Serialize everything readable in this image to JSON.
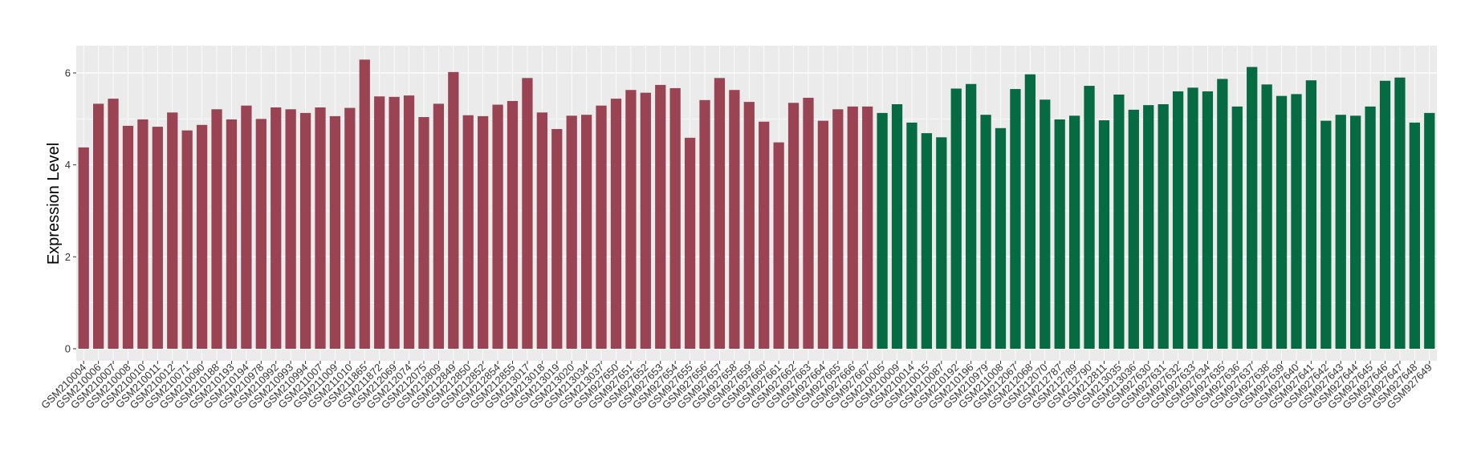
{
  "chart_data": {
    "type": "bar",
    "title": "",
    "xlabel": "",
    "ylabel": "Expression Level",
    "ylim": [
      0,
      6.6
    ],
    "yticks": [
      "0",
      "2",
      "4",
      "6"
    ],
    "grid": true,
    "legend": "none",
    "colors": {
      "group_a": "#9a4453",
      "group_b": "#066a43",
      "panel": "#ebebeb",
      "grid": "#ffffff"
    },
    "categories": [
      "GSM210004",
      "GSM210006",
      "GSM210007",
      "GSM210008",
      "GSM210010",
      "GSM210011",
      "GSM210012",
      "GSM210071",
      "GSM210090",
      "GSM210188",
      "GSM210193",
      "GSM210194",
      "GSM210978",
      "GSM210992",
      "GSM210993",
      "GSM210994",
      "GSM211007",
      "GSM211009",
      "GSM211010",
      "GSM211865",
      "GSM211872",
      "GSM212069",
      "GSM212074",
      "GSM212075",
      "GSM212809",
      "GSM212849",
      "GSM212850",
      "GSM212852",
      "GSM212854",
      "GSM212855",
      "GSM213017",
      "GSM213018",
      "GSM213019",
      "GSM213020",
      "GSM213034",
      "GSM213037",
      "GSM927650",
      "GSM927651",
      "GSM927652",
      "GSM927653",
      "GSM927654",
      "GSM927655",
      "GSM927656",
      "GSM927657",
      "GSM927658",
      "GSM927659",
      "GSM927660",
      "GSM927661",
      "GSM927662",
      "GSM927663",
      "GSM927664",
      "GSM927665",
      "GSM927666",
      "GSM927667",
      "GSM210005",
      "GSM210009",
      "GSM210014",
      "GSM210015",
      "GSM210087",
      "GSM210192",
      "GSM210196",
      "GSM210979",
      "GSM211008",
      "GSM212067",
      "GSM212068",
      "GSM212070",
      "GSM212787",
      "GSM212789",
      "GSM212790",
      "GSM212811",
      "GSM213035",
      "GSM213036",
      "GSM927630",
      "GSM927631",
      "GSM927632",
      "GSM927633",
      "GSM927634",
      "GSM927635",
      "GSM927636",
      "GSM927637",
      "GSM927638",
      "GSM927639",
      "GSM927640",
      "GSM927641",
      "GSM927642",
      "GSM927643",
      "GSM927644",
      "GSM927645",
      "GSM927646",
      "GSM927647",
      "GSM927648",
      "GSM927649"
    ],
    "values": [
      4.38,
      5.33,
      5.44,
      4.85,
      4.99,
      4.83,
      5.14,
      4.75,
      4.87,
      5.21,
      4.99,
      5.29,
      5.0,
      5.25,
      5.21,
      5.13,
      5.25,
      5.06,
      5.24,
      6.29,
      5.49,
      5.48,
      5.51,
      5.04,
      5.33,
      6.02,
      5.08,
      5.06,
      5.31,
      5.39,
      5.89,
      5.14,
      4.78,
      5.07,
      5.09,
      5.29,
      5.44,
      5.63,
      5.57,
      5.74,
      5.67,
      4.59,
      5.41,
      5.89,
      5.63,
      5.37,
      4.94,
      4.49,
      5.35,
      5.46,
      4.96,
      5.21,
      5.27,
      5.27,
      5.13,
      5.32,
      4.92,
      4.69,
      4.6,
      5.66,
      5.76,
      5.09,
      4.8,
      5.65,
      5.97,
      5.42,
      4.99,
      5.07,
      5.72,
      4.97,
      5.53,
      5.2,
      5.3,
      5.32,
      5.6,
      5.68,
      5.6,
      5.87,
      5.27,
      6.13,
      5.75,
      5.5,
      5.54,
      5.84,
      4.96,
      5.09,
      5.07,
      5.27,
      5.83,
      5.9,
      4.92,
      5.13
    ],
    "groups": [
      "a",
      "a",
      "a",
      "a",
      "a",
      "a",
      "a",
      "a",
      "a",
      "a",
      "a",
      "a",
      "a",
      "a",
      "a",
      "a",
      "a",
      "a",
      "a",
      "a",
      "a",
      "a",
      "a",
      "a",
      "a",
      "a",
      "a",
      "a",
      "a",
      "a",
      "a",
      "a",
      "a",
      "a",
      "a",
      "a",
      "a",
      "a",
      "a",
      "a",
      "a",
      "a",
      "a",
      "a",
      "a",
      "a",
      "a",
      "a",
      "a",
      "a",
      "a",
      "a",
      "a",
      "a",
      "b",
      "b",
      "b",
      "b",
      "b",
      "b",
      "b",
      "b",
      "b",
      "b",
      "b",
      "b",
      "b",
      "b",
      "b",
      "b",
      "b",
      "b",
      "b",
      "b",
      "b",
      "b",
      "b",
      "b",
      "b",
      "b",
      "b",
      "b",
      "b",
      "b",
      "b",
      "b",
      "b",
      "b",
      "b",
      "b",
      "b",
      "b"
    ]
  }
}
